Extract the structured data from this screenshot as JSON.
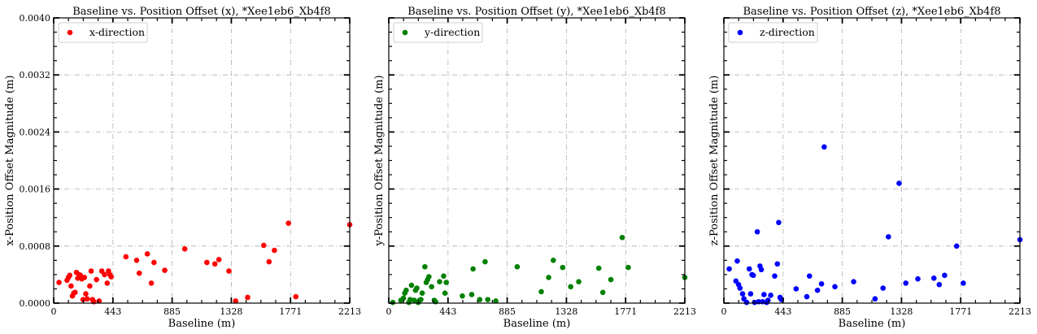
{
  "chart_data": [
    {
      "type": "scatter",
      "title": "Baseline vs. Position Offset (x), *Xee1eb6_Xb4f8",
      "xlabel": "Baseline (m)",
      "ylabel": "x-Position Offset Magnitude (m)",
      "xlim": [
        0,
        2213
      ],
      "ylim": [
        0,
        0.004
      ],
      "xticks": [
        "0",
        "443",
        "885",
        "1328",
        "1771",
        "2213"
      ],
      "yticks": [
        "0.0000",
        "0.0008",
        "0.0016",
        "0.0024",
        "0.0032",
        "0.0040"
      ],
      "grid": true,
      "legend_position": "top-left",
      "series": [
        {
          "name": "x-direction",
          "color": "#ff0000",
          "x": [
            40,
            100,
            110,
            120,
            130,
            140,
            150,
            160,
            170,
            180,
            190,
            200,
            210,
            220,
            230,
            240,
            250,
            270,
            280,
            290,
            300,
            320,
            340,
            360,
            380,
            400,
            410,
            420,
            430,
            540,
            620,
            640,
            700,
            730,
            750,
            830,
            980,
            1145,
            1205,
            1235,
            1310,
            1360,
            1450,
            1570,
            1610,
            1650,
            1755,
            1810,
            2213
          ],
          "y": [
            0.00029,
            0.00032,
            0.00036,
            0.00039,
            0.00024,
            0.0001,
            0.00014,
            0.00015,
            0.00043,
            0.00035,
            0.0004,
            0.00039,
            0.00034,
            5e-05,
            0.00036,
            0.00013,
            6e-05,
            0.00024,
            0.00045,
            5e-05,
            2e-05,
            0.00033,
            3e-05,
            0.00045,
            0.0004,
            0.00028,
            0.00045,
            0.0004,
            0.00037,
            0.00065,
            0.0006,
            0.00042,
            0.00069,
            0.00028,
            0.00057,
            0.00046,
            0.00076,
            0.00057,
            0.00055,
            0.00061,
            0.00045,
            3e-05,
            8e-05,
            0.00081,
            0.00058,
            0.00074,
            0.00112,
            9e-05,
            0.0011
          ]
        }
      ]
    },
    {
      "type": "scatter",
      "title": "Baseline vs. Position Offset (y), *Xee1eb6_Xb4f8",
      "xlabel": "Baseline (m)",
      "ylabel": "y-Position Offset Magnitude (m)",
      "xlim": [
        0,
        2213
      ],
      "ylim": [
        0,
        0.004
      ],
      "xticks": [
        "0",
        "443",
        "885",
        "1328",
        "1771",
        "2213"
      ],
      "yticks": [],
      "grid": true,
      "legend_position": "top-left",
      "series": [
        {
          "name": "y-direction",
          "color": "#008000",
          "x": [
            30,
            90,
            110,
            120,
            130,
            150,
            160,
            170,
            190,
            200,
            210,
            220,
            230,
            240,
            250,
            270,
            280,
            290,
            300,
            320,
            340,
            350,
            380,
            410,
            420,
            430,
            550,
            620,
            630,
            680,
            720,
            740,
            800,
            960,
            1140,
            1195,
            1230,
            1300,
            1360,
            1420,
            1570,
            1600,
            1660,
            1745,
            1790,
            2213
          ],
          "y": [
            1e-05,
            4e-05,
            7e-05,
            0.00014,
            0.00018,
            1e-05,
            5e-05,
            0.00025,
            4e-05,
            0.00018,
            0.00021,
            1e-05,
            4e-05,
            5e-05,
            0.00014,
            0.00051,
            0.00029,
            0.00033,
            0.00037,
            0.00023,
            4e-05,
            2e-05,
            0.0003,
            0.00038,
            0.00014,
            0.00029,
            0.0001,
            0.00012,
            0.00048,
            5e-05,
            0.00058,
            5e-05,
            3e-05,
            0.00051,
            0.00016,
            0.00036,
            0.0006,
            0.0005,
            0.00023,
            0.0003,
            0.00049,
            0.00015,
            0.00033,
            0.00092,
            0.0005,
            0.00036
          ]
        }
      ]
    },
    {
      "type": "scatter",
      "title": "Baseline vs. Position Offset (z), *Xee1eb6_Xb4f8",
      "xlabel": "Baseline (m)",
      "ylabel": "z-Position Offset Magnitude (m)",
      "xlim": [
        0,
        2213
      ],
      "ylim": [
        0,
        0.004
      ],
      "xticks": [
        "0",
        "443",
        "885",
        "1328",
        "1771",
        "2213"
      ],
      "yticks": [],
      "grid": true,
      "legend_position": "top-left",
      "series": [
        {
          "name": "z-direction",
          "color": "#0000ff",
          "x": [
            40,
            90,
            100,
            110,
            120,
            140,
            150,
            170,
            190,
            200,
            210,
            220,
            230,
            250,
            260,
            270,
            280,
            290,
            300,
            320,
            330,
            350,
            380,
            400,
            410,
            420,
            430,
            540,
            620,
            640,
            700,
            730,
            750,
            830,
            970,
            1130,
            1190,
            1230,
            1310,
            1360,
            1450,
            1570,
            1610,
            1650,
            1740,
            1790,
            2213
          ],
          "y": [
            0.00048,
            0.00031,
            0.00059,
            0.00026,
            0.00021,
            0.00013,
            6e-05,
            1e-05,
            0.00048,
            0.00013,
            0.0004,
            0.00039,
            1e-05,
            0.001,
            2e-05,
            0.00052,
            0.00047,
            2e-05,
            0.00012,
            1e-05,
            4e-05,
            0.00011,
            0.00038,
            0.00055,
            0.00113,
            8e-05,
            5e-05,
            0.0002,
            9e-05,
            0.00038,
            0.00018,
            0.00027,
            0.00219,
            0.00023,
            0.0003,
            6e-05,
            0.00021,
            0.00093,
            0.00168,
            0.00028,
            0.00034,
            0.00035,
            0.00026,
            0.00039,
            0.0008,
            0.00028,
            0.00089
          ]
        }
      ]
    }
  ]
}
